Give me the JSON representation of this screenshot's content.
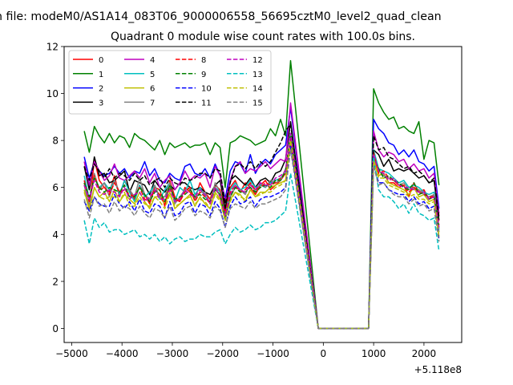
{
  "figure": {
    "suptitle": "n file: modeM0/AS1A14_083T06_9000006558_56695cztM0_level2_quad_clean",
    "offset_label": "+5.118e8"
  },
  "chart_data": {
    "type": "line",
    "title": "Quadrant 0 module wise count rates with 100.0s bins.",
    "xlabel": "",
    "ylabel": "",
    "x_offset": 511800000,
    "xlim": [
      -5150,
      2750
    ],
    "ylim": [
      -0.6,
      12.0
    ],
    "xticks": [
      -5000,
      -4000,
      -3000,
      -2000,
      -1000,
      0,
      1000,
      2000
    ],
    "xtick_labels": [
      "−5000",
      "−4000",
      "−3000",
      "−2000",
      "−1000",
      "0",
      "1000",
      "2000"
    ],
    "yticks": [
      0,
      2,
      4,
      6,
      8,
      10,
      12
    ],
    "ytick_labels": [
      "0",
      "2",
      "4",
      "6",
      "8",
      "10",
      "12"
    ],
    "grid": false,
    "legend_position": "top-left",
    "legend_columns": 4,
    "x_start": -4750,
    "x_step": 100,
    "gap_start": -100,
    "gap_end": 900,
    "series": [
      {
        "name": "0",
        "color": "#ff0000",
        "style": "solid",
        "pre": [
          6.2,
          5.1,
          7.2,
          6.3,
          6.0,
          5.8,
          6.5,
          5.6,
          6.3,
          5.9,
          5.5,
          6.1,
          5.7,
          5.3,
          6.0,
          5.9,
          5.2,
          6.3,
          5.6,
          5.4,
          6.0,
          5.8,
          5.5,
          6.2,
          5.8,
          5.5,
          6.1,
          5.9,
          5.0,
          6.0,
          6.3,
          5.8,
          6.2,
          6.0,
          5.7,
          6.1,
          6.3,
          5.9,
          6.1,
          6.3,
          6.6,
          7.8
        ],
        "post": [
          7.3,
          6.5,
          6.6,
          6.2,
          6.2,
          6.0,
          6.1,
          5.6,
          6.2,
          5.8,
          5.9,
          5.5,
          5.7,
          4.8
        ]
      },
      {
        "name": "1",
        "color": "#008000",
        "style": "solid",
        "pre": [
          8.4,
          7.5,
          8.6,
          8.2,
          7.9,
          8.3,
          7.9,
          8.2,
          8.1,
          7.7,
          8.3,
          8.1,
          8.0,
          7.8,
          7.6,
          8.0,
          7.4,
          7.9,
          7.7,
          7.8,
          7.9,
          7.7,
          7.8,
          7.8,
          7.9,
          7.4,
          7.9,
          7.7,
          6.0,
          7.9,
          8.0,
          8.2,
          8.1,
          8.0,
          7.8,
          7.9,
          8.0,
          8.5,
          8.2,
          8.9,
          8.2,
          11.4
        ],
        "post": [
          10.2,
          9.6,
          9.2,
          8.9,
          9.0,
          8.5,
          8.6,
          8.4,
          8.3,
          8.8,
          7.2,
          8.0,
          7.9,
          6.1
        ]
      },
      {
        "name": "2",
        "color": "#0000ff",
        "style": "solid",
        "pre": [
          7.3,
          6.4,
          7.1,
          6.7,
          6.5,
          6.6,
          6.9,
          6.6,
          6.8,
          6.4,
          6.7,
          6.6,
          7.1,
          6.5,
          6.8,
          6.3,
          6.2,
          6.6,
          6.4,
          6.3,
          6.9,
          7.0,
          6.6,
          6.5,
          6.8,
          6.4,
          7.0,
          6.5,
          5.5,
          6.7,
          7.1,
          7.0,
          6.6,
          7.4,
          6.6,
          7.0,
          7.2,
          7.0,
          7.4,
          7.6,
          7.8,
          9.4
        ],
        "post": [
          8.9,
          8.5,
          8.3,
          7.9,
          7.8,
          7.4,
          7.6,
          7.3,
          7.6,
          7.1,
          7.0,
          6.7,
          6.9,
          5.1
        ]
      },
      {
        "name": "3",
        "color": "#000000",
        "style": "solid",
        "pre": [
          6.9,
          5.9,
          7.3,
          6.5,
          6.6,
          6.2,
          6.3,
          6.5,
          6.7,
          5.8,
          6.3,
          6.2,
          6.1,
          5.7,
          6.3,
          6.0,
          5.8,
          6.1,
          5.9,
          6.2,
          6.2,
          6.0,
          5.9,
          6.0,
          5.8,
          5.7,
          6.1,
          6.3,
          5.1,
          6.3,
          6.5,
          6.3,
          6.1,
          6.4,
          6.0,
          6.3,
          6.4,
          6.2,
          6.6,
          6.7,
          7.2,
          8.8
        ],
        "post": [
          7.6,
          7.4,
          6.9,
          7.2,
          6.7,
          6.8,
          6.7,
          6.8,
          6.6,
          6.4,
          6.5,
          6.2,
          6.3,
          4.6
        ]
      },
      {
        "name": "4",
        "color": "#bf00bf",
        "style": "solid",
        "pre": [
          7.1,
          6.1,
          7.1,
          6.7,
          6.3,
          6.5,
          7.0,
          6.4,
          6.3,
          6.5,
          6.7,
          6.4,
          6.8,
          6.2,
          6.6,
          6.0,
          6.3,
          6.5,
          5.9,
          6.2,
          6.7,
          6.3,
          6.5,
          6.4,
          6.6,
          6.0,
          6.9,
          6.5,
          5.4,
          6.3,
          6.9,
          7.1,
          6.6,
          6.8,
          6.7,
          6.9,
          7.1,
          6.8,
          7.0,
          7.2,
          7.1,
          9.6
        ],
        "post": [
          8.4,
          7.6,
          7.3,
          7.5,
          7.4,
          7.1,
          7.2,
          6.8,
          7.0,
          6.7,
          6.8,
          6.4,
          6.6,
          4.9
        ]
      },
      {
        "name": "5",
        "color": "#00bfbf",
        "style": "solid",
        "pre": [
          6.5,
          5.5,
          6.4,
          6.0,
          6.2,
          5.9,
          6.3,
          5.7,
          6.3,
          5.8,
          5.4,
          6.1,
          5.6,
          5.8,
          6.1,
          5.5,
          5.9,
          6.2,
          5.4,
          6.0,
          5.8,
          6.3,
          5.7,
          6.0,
          5.6,
          5.4,
          6.0,
          5.8,
          4.8,
          5.9,
          6.2,
          5.9,
          6.0,
          6.3,
          6.0,
          6.1,
          6.0,
          6.2,
          6.3,
          6.4,
          6.6,
          8.3
        ],
        "post": [
          7.6,
          6.8,
          6.7,
          6.6,
          6.4,
          6.2,
          6.3,
          6.0,
          6.1,
          6.0,
          5.8,
          5.7,
          5.8,
          4.2
        ]
      },
      {
        "name": "6",
        "color": "#bfbf00",
        "style": "solid",
        "pre": [
          5.9,
          5.0,
          6.0,
          5.6,
          5.8,
          5.4,
          5.9,
          5.4,
          5.7,
          5.5,
          5.3,
          5.8,
          5.4,
          5.1,
          5.6,
          5.6,
          5.3,
          5.8,
          5.1,
          5.3,
          5.5,
          5.7,
          5.2,
          5.6,
          5.3,
          5.1,
          5.8,
          5.5,
          4.6,
          5.5,
          5.8,
          5.7,
          5.4,
          5.9,
          5.6,
          5.8,
          5.8,
          6.0,
          6.1,
          6.2,
          6.3,
          8.1
        ],
        "post": [
          7.2,
          6.5,
          6.6,
          6.2,
          6.1,
          6.0,
          5.9,
          5.7,
          6.0,
          5.6,
          5.7,
          5.4,
          5.5,
          3.9
        ]
      },
      {
        "name": "7",
        "color": "#808080",
        "style": "solid",
        "pre": [
          6.1,
          5.2,
          6.6,
          5.9,
          6.2,
          5.6,
          6.3,
          5.8,
          5.9,
          5.9,
          5.6,
          6.4,
          5.7,
          5.5,
          6.1,
          5.6,
          5.6,
          6.2,
          5.3,
          5.6,
          5.9,
          6.0,
          5.5,
          5.8,
          5.8,
          5.3,
          6.2,
          5.8,
          4.6,
          5.6,
          6.0,
          5.9,
          5.7,
          6.2,
          5.8,
          6.2,
          6.0,
          6.3,
          6.2,
          6.3,
          6.8,
          8.1
        ],
        "post": [
          7.4,
          6.7,
          6.5,
          6.4,
          6.3,
          6.1,
          6.2,
          5.9,
          6.0,
          5.9,
          5.7,
          5.6,
          5.7,
          4.1
        ]
      },
      {
        "name": "8",
        "color": "#ff0000",
        "style": "dashed",
        "pre": [
          6.3,
          5.4,
          6.5,
          5.9,
          6.0,
          5.7,
          6.2,
          5.8,
          5.9,
          5.7,
          5.6,
          6.0,
          5.5,
          5.4,
          5.9,
          5.7,
          5.3,
          6.0,
          5.5,
          5.4,
          5.8,
          6.0,
          5.4,
          5.8,
          5.6,
          5.3,
          6.0,
          5.6,
          4.9,
          5.8,
          6.1,
          5.8,
          5.9,
          6.2,
          5.9,
          6.0,
          6.2,
          6.1,
          6.2,
          6.4,
          6.6,
          8.2
        ],
        "post": [
          7.5,
          6.6,
          6.7,
          6.4,
          6.3,
          6.1,
          6.1,
          5.8,
          6.0,
          5.8,
          5.7,
          5.6,
          5.6,
          4.4
        ]
      },
      {
        "name": "9",
        "color": "#008000",
        "style": "dashed",
        "pre": [
          6.2,
          5.6,
          6.4,
          6.0,
          5.8,
          6.0,
          5.9,
          5.8,
          6.1,
          5.6,
          5.6,
          6.0,
          5.7,
          5.4,
          5.8,
          5.9,
          5.4,
          6.1,
          5.5,
          5.6,
          5.7,
          5.9,
          5.6,
          5.7,
          5.5,
          5.4,
          5.9,
          5.7,
          4.7,
          5.6,
          6.0,
          5.8,
          5.8,
          6.0,
          5.8,
          6.0,
          6.1,
          6.0,
          6.3,
          6.3,
          6.7,
          8.3
        ],
        "post": [
          7.3,
          6.8,
          6.4,
          6.5,
          6.3,
          6.2,
          6.0,
          5.9,
          6.2,
          5.7,
          5.8,
          5.5,
          5.6,
          4.3
        ]
      },
      {
        "name": "10",
        "color": "#0000ff",
        "style": "dashed",
        "pre": [
          5.4,
          5.0,
          5.6,
          5.3,
          5.2,
          5.2,
          5.7,
          5.3,
          5.1,
          5.4,
          5.0,
          5.5,
          5.0,
          4.9,
          5.3,
          5.2,
          4.7,
          5.4,
          4.8,
          4.9,
          5.3,
          5.4,
          4.9,
          5.3,
          5.2,
          4.8,
          5.4,
          5.1,
          4.3,
          5.2,
          5.6,
          5.3,
          5.4,
          5.6,
          5.2,
          5.5,
          5.6,
          5.6,
          5.7,
          5.8,
          6.0,
          7.8
        ],
        "post": [
          7.0,
          6.2,
          6.2,
          5.9,
          5.8,
          5.7,
          5.7,
          5.4,
          5.6,
          5.3,
          5.4,
          5.1,
          5.2,
          3.8
        ]
      },
      {
        "name": "11",
        "color": "#000000",
        "style": "dashed",
        "pre": [
          6.9,
          6.3,
          7.0,
          6.7,
          6.4,
          6.8,
          6.4,
          6.6,
          6.5,
          6.3,
          6.6,
          6.3,
          6.5,
          6.1,
          6.3,
          6.4,
          6.0,
          6.4,
          6.2,
          6.1,
          6.4,
          6.3,
          6.4,
          6.6,
          6.6,
          6.4,
          6.8,
          6.7,
          5.3,
          6.2,
          6.9,
          7.0,
          6.8,
          7.1,
          6.8,
          7.1,
          6.9,
          7.1,
          7.5,
          7.9,
          8.4,
          8.7
        ],
        "post": [
          8.2,
          7.6,
          7.7,
          7.3,
          7.2,
          7.0,
          6.8,
          6.9,
          6.6,
          6.7,
          6.5,
          6.2,
          6.4,
          4.7
        ]
      },
      {
        "name": "12",
        "color": "#bf00bf",
        "style": "dashed",
        "pre": [
          6.1,
          5.5,
          6.3,
          5.8,
          5.7,
          5.9,
          5.8,
          5.6,
          6.0,
          5.5,
          5.7,
          5.8,
          5.4,
          5.6,
          5.9,
          5.5,
          5.5,
          5.9,
          5.4,
          5.5,
          5.9,
          5.7,
          5.6,
          5.9,
          5.7,
          5.3,
          6.0,
          5.6,
          4.8,
          5.7,
          6.1,
          5.9,
          5.8,
          6.1,
          5.9,
          6.2,
          6.1,
          6.1,
          6.4,
          6.5,
          6.7,
          8.3
        ],
        "post": [
          7.4,
          6.7,
          6.6,
          6.3,
          6.4,
          6.1,
          6.0,
          6.0,
          5.9,
          5.8,
          5.8,
          5.5,
          5.6,
          4.3
        ]
      },
      {
        "name": "13",
        "color": "#00bfbf",
        "style": "dashed",
        "pre": [
          4.6,
          3.6,
          4.7,
          4.3,
          4.5,
          4.1,
          4.2,
          4.2,
          4.0,
          4.1,
          4.2,
          3.9,
          4.0,
          3.8,
          4.0,
          3.7,
          3.9,
          3.6,
          3.8,
          3.9,
          3.7,
          3.8,
          3.8,
          4.0,
          3.9,
          3.9,
          4.1,
          4.2,
          3.6,
          4.0,
          4.3,
          4.1,
          4.2,
          4.4,
          4.2,
          4.3,
          4.5,
          4.5,
          4.6,
          4.8,
          5.0,
          6.6
        ],
        "post": [
          7.3,
          5.9,
          5.6,
          5.6,
          5.4,
          5.1,
          5.3,
          4.9,
          5.3,
          4.9,
          4.8,
          4.6,
          4.7,
          3.3
        ]
      },
      {
        "name": "14",
        "color": "#bfbf00",
        "style": "dashed",
        "pre": [
          5.8,
          5.1,
          6.0,
          5.6,
          5.5,
          5.6,
          5.6,
          5.4,
          5.8,
          5.2,
          5.2,
          5.6,
          5.3,
          5.2,
          5.6,
          5.4,
          5.1,
          5.7,
          5.2,
          5.3,
          5.5,
          5.6,
          5.3,
          5.5,
          5.4,
          5.1,
          5.7,
          5.4,
          4.6,
          5.4,
          5.8,
          5.6,
          5.5,
          5.9,
          5.6,
          5.7,
          5.8,
          5.8,
          6.0,
          6.1,
          6.3,
          8.0
        ],
        "post": [
          7.1,
          6.4,
          6.4,
          6.1,
          6.0,
          5.9,
          5.8,
          5.6,
          5.7,
          5.5,
          5.5,
          5.3,
          5.4,
          3.9
        ]
      },
      {
        "name": "15",
        "color": "#808080",
        "style": "dashed",
        "pre": [
          5.5,
          4.7,
          5.6,
          5.2,
          5.3,
          4.9,
          5.4,
          5.0,
          5.2,
          5.1,
          4.8,
          5.2,
          4.9,
          4.7,
          5.1,
          5.0,
          4.7,
          5.2,
          4.6,
          4.8,
          5.1,
          5.2,
          4.8,
          5.0,
          4.9,
          4.7,
          5.2,
          5.0,
          4.3,
          5.1,
          5.3,
          5.2,
          5.1,
          5.4,
          5.1,
          5.3,
          5.3,
          5.4,
          5.5,
          5.6,
          5.9,
          7.6
        ],
        "post": [
          6.9,
          6.1,
          6.2,
          5.9,
          5.7,
          5.6,
          5.6,
          5.3,
          5.5,
          5.2,
          5.3,
          5.0,
          5.1,
          3.7
        ]
      }
    ]
  }
}
